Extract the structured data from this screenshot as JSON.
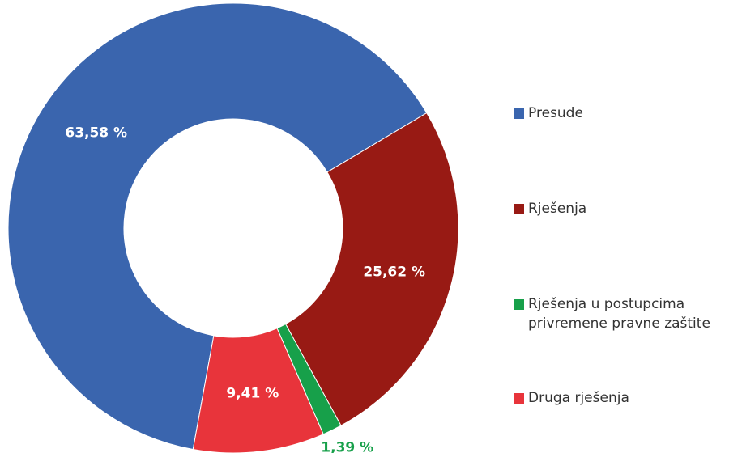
{
  "chart_data": {
    "type": "donut",
    "categories": [
      "Presude",
      "Rješenja",
      "Rješenja u postupcima privremene pravne zaštite",
      "Druga rješenja"
    ],
    "values": [
      63.58,
      25.62,
      1.39,
      9.41
    ],
    "value_labels": [
      "63,58 %",
      "25,62 %",
      "1,39 %",
      "9,41 %"
    ],
    "colors": [
      "#3a65ae",
      "#981a14",
      "#17a04a",
      "#e8343b"
    ],
    "legend": "right"
  }
}
